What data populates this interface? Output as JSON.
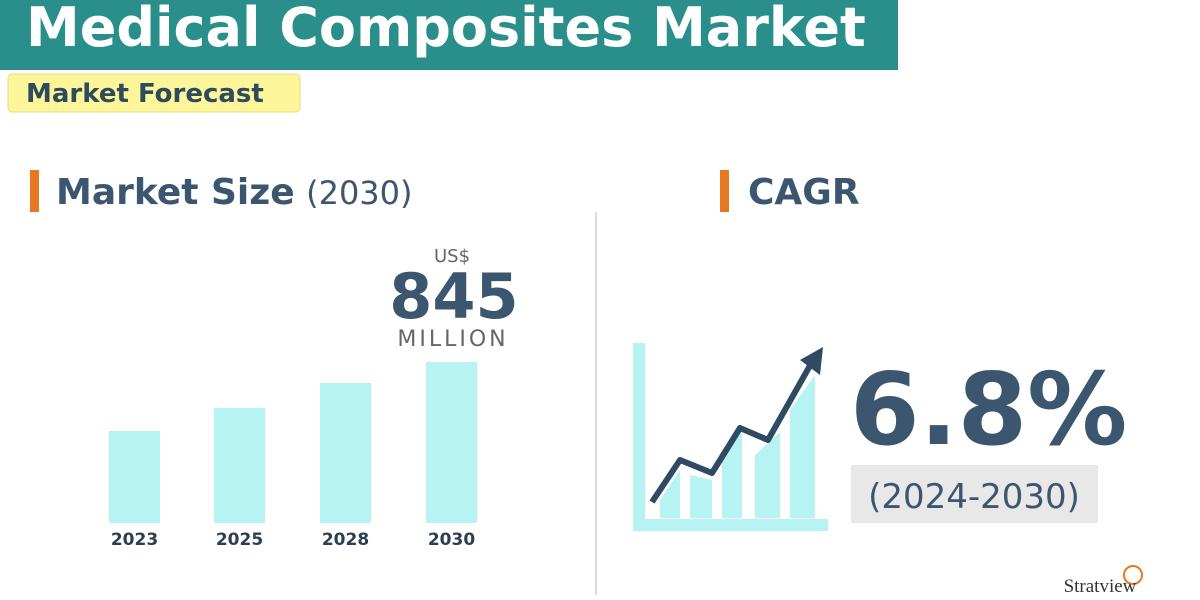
{
  "header": {
    "title": "Medical Composites Market",
    "subtitle": "Market Forecast"
  },
  "market_size": {
    "label": "Market Size",
    "year_label": "(2030)",
    "currency": "US$",
    "unit": "MILLION",
    "bars": {
      "categories": [
        "2023",
        "2025",
        "2028",
        "2030"
      ],
      "values": [
        483,
        604,
        735,
        845
      ],
      "color": "#b8f3f3"
    }
  },
  "cagr": {
    "label": "CAGR",
    "value": "6.8%",
    "period": "(2024-2030)"
  },
  "logo": {
    "text": "Stratview"
  }
}
